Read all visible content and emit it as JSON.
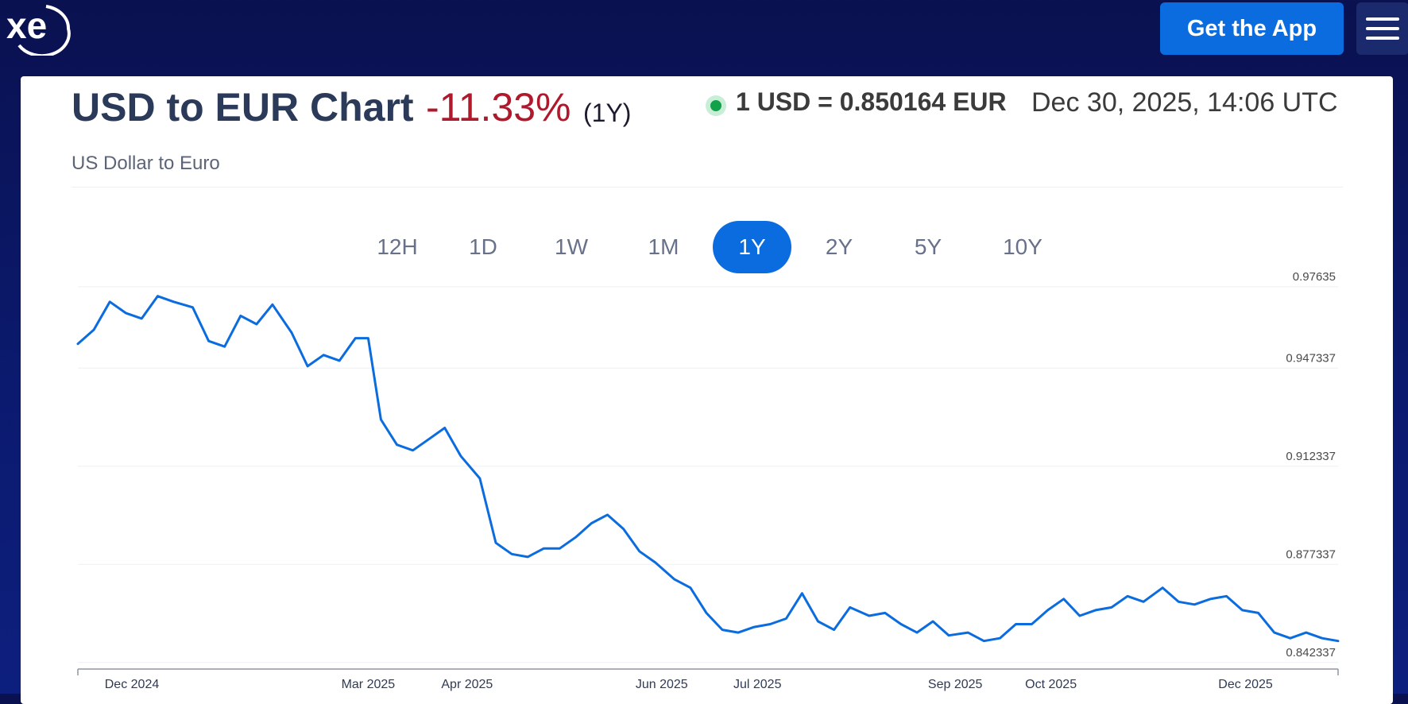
{
  "header": {
    "logo_text": "xe",
    "app_button_label": "Get the App",
    "menu_icon": "hamburger-menu-icon",
    "colors": {
      "background": "#0b1a6e",
      "accent": "#0a6cde"
    }
  },
  "summary": {
    "title": "USD to EUR Chart",
    "change": "-11.33%",
    "period": "(1Y)",
    "subtitle": "US Dollar to Euro",
    "rate": "1 USD = 0.850164 EUR",
    "timestamp": "Dec 30, 2025, 14:06 UTC",
    "change_color": "#b0182c",
    "live_indicator_color": "#12a14b"
  },
  "ranges": {
    "options": [
      "12H",
      "1D",
      "1W",
      "1M",
      "1Y",
      "2Y",
      "5Y",
      "10Y"
    ],
    "selected": "1Y"
  },
  "chart_data": {
    "type": "line",
    "title": "",
    "xlabel": "",
    "ylabel": "",
    "line_color": "#0a6cde",
    "x_ticks": [
      "Dec 2024",
      "Mar 2025",
      "Apr 2025",
      "Jun 2025",
      "Jul 2025",
      "Sep 2025",
      "Oct 2025",
      "Dec 2025"
    ],
    "y_ticks": [
      "0.97635",
      "0.947337",
      "0.912337",
      "0.877337",
      "0.842337"
    ],
    "y_axis_side": "right",
    "grid": "horizontal",
    "ylim": [
      0.84,
      0.98
    ],
    "series": [
      {
        "x": [
          "2024-11-30",
          "2024-12-05",
          "2024-12-10",
          "2024-12-15",
          "2024-12-20",
          "2024-12-25",
          "2024-12-30",
          "2025-01-05",
          "2025-01-10",
          "2025-01-15",
          "2025-01-20",
          "2025-01-25",
          "2025-01-30",
          "2025-02-05",
          "2025-02-10",
          "2025-02-15",
          "2025-02-20",
          "2025-02-25",
          "2025-03-01",
          "2025-03-05",
          "2025-03-10",
          "2025-03-15",
          "2025-03-20",
          "2025-03-25",
          "2025-03-30",
          "2025-04-05",
          "2025-04-10",
          "2025-04-15",
          "2025-04-20",
          "2025-04-25",
          "2025-04-30",
          "2025-05-05",
          "2025-05-10",
          "2025-05-15",
          "2025-05-20",
          "2025-05-25",
          "2025-05-30",
          "2025-06-05",
          "2025-06-10",
          "2025-06-15",
          "2025-06-20",
          "2025-06-25",
          "2025-06-30",
          "2025-07-05",
          "2025-07-10",
          "2025-07-15",
          "2025-07-20",
          "2025-07-25",
          "2025-07-30",
          "2025-08-05",
          "2025-08-10",
          "2025-08-15",
          "2025-08-20",
          "2025-08-25",
          "2025-08-30",
          "2025-09-05",
          "2025-09-10",
          "2025-09-15",
          "2025-09-20",
          "2025-09-25",
          "2025-09-30",
          "2025-10-05",
          "2025-10-10",
          "2025-10-15",
          "2025-10-20",
          "2025-10-25",
          "2025-10-30",
          "2025-11-05",
          "2025-11-10",
          "2025-11-15",
          "2025-11-20",
          "2025-11-25",
          "2025-11-30",
          "2025-12-05",
          "2025-12-10",
          "2025-12-15",
          "2025-12-20",
          "2025-12-25",
          "2025-12-30"
        ],
        "y": [
          0.956,
          0.961,
          0.971,
          0.967,
          0.965,
          0.973,
          0.971,
          0.969,
          0.957,
          0.955,
          0.966,
          0.963,
          0.97,
          0.96,
          0.948,
          0.952,
          0.95,
          0.958,
          0.958,
          0.929,
          0.92,
          0.918,
          0.922,
          0.926,
          0.916,
          0.908,
          0.885,
          0.881,
          0.88,
          0.883,
          0.883,
          0.887,
          0.892,
          0.895,
          0.89,
          0.882,
          0.878,
          0.872,
          0.869,
          0.86,
          0.854,
          0.853,
          0.855,
          0.856,
          0.858,
          0.867,
          0.857,
          0.854,
          0.862,
          0.859,
          0.86,
          0.856,
          0.853,
          0.857,
          0.852,
          0.853,
          0.85,
          0.851,
          0.856,
          0.856,
          0.861,
          0.865,
          0.859,
          0.861,
          0.862,
          0.866,
          0.864,
          0.869,
          0.864,
          0.863,
          0.865,
          0.866,
          0.861,
          0.86,
          0.853,
          0.851,
          0.853,
          0.851,
          0.85
        ]
      }
    ]
  }
}
